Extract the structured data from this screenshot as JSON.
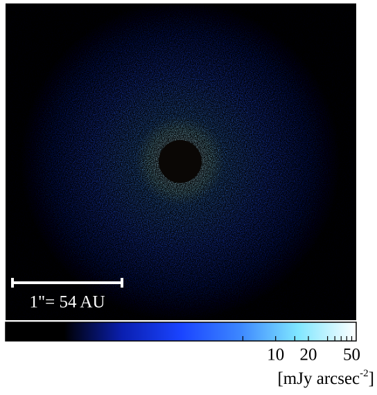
{
  "scale_bar": {
    "label": "1\"= 54 AU"
  },
  "colorbar": {
    "log": true,
    "lim": [
      0.033,
      55
    ],
    "ticks": [
      5,
      10,
      15,
      20,
      30,
      35,
      40,
      45,
      50
    ],
    "tick_labels": [
      10,
      20,
      50
    ],
    "colors": [
      "#000000",
      "#000000",
      "#0a1fb0",
      "#1a44ff",
      "#3c86ff",
      "#7fe6ff",
      "#ffffff"
    ]
  },
  "unit": {
    "text": "[mJy arcsec",
    "exponent": "-2",
    "close": "]"
  }
}
